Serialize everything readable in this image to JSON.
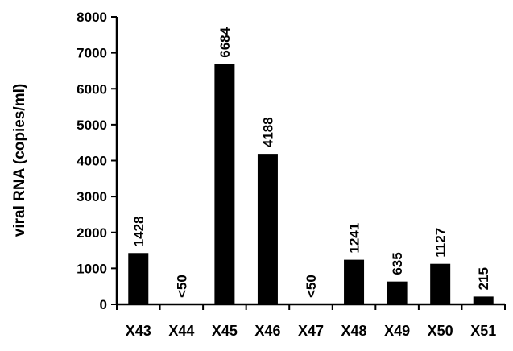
{
  "chart_data": {
    "type": "bar",
    "title": "",
    "xlabel": "",
    "ylabel": "viral RNA (copies/ml)",
    "categories": [
      "X43",
      "X44",
      "X45",
      "X46",
      "X47",
      "X48",
      "X49",
      "X50",
      "X51"
    ],
    "values": [
      1428,
      0,
      6684,
      4188,
      0,
      1241,
      635,
      1127,
      215
    ],
    "data_labels": [
      "1428",
      "<50",
      "6684",
      "4188",
      "<50",
      "1241",
      "635",
      "1127",
      "215"
    ],
    "ylim": [
      0,
      8000
    ],
    "yticks": [
      0,
      1000,
      2000,
      3000,
      4000,
      5000,
      6000,
      7000,
      8000
    ],
    "grid": false,
    "legend": "none",
    "bar_color": "#000000"
  }
}
